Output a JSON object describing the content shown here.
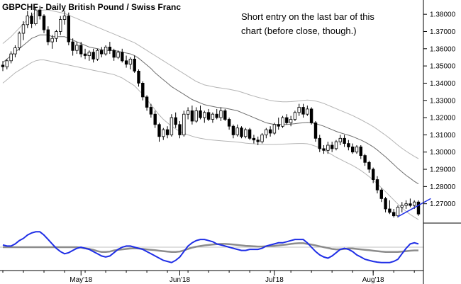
{
  "chart_data": {
    "type": "candlestick",
    "title": "GBPCHF - Daily  British Pound / Swiss Franc",
    "annotation_lines": [
      "Short entry on the last bar of this",
      "chart (before close, though.)"
    ],
    "y_range": [
      1.26,
      1.385
    ],
    "y_ticks": [
      "1.38000",
      "1.37000",
      "1.36000",
      "1.35000",
      "1.34000",
      "1.33000",
      "1.32000",
      "1.31000",
      "1.30000",
      "1.29000",
      "1.28000",
      "1.27000"
    ],
    "x_labels": [
      {
        "label": "May'18",
        "bar": 19
      },
      {
        "label": "Jun'18",
        "bar": 43
      },
      {
        "label": "Jul'18",
        "bar": 66
      },
      {
        "label": "Aug'18",
        "bar": 90
      }
    ],
    "ohlc": [
      [
        1.3505,
        1.3528,
        1.347,
        1.3495
      ],
      [
        1.3495,
        1.354,
        1.348,
        1.353
      ],
      [
        1.353,
        1.3585,
        1.3515,
        1.357
      ],
      [
        1.357,
        1.362,
        1.355,
        1.3605
      ],
      [
        1.3605,
        1.37,
        1.359,
        1.369
      ],
      [
        1.369,
        1.376,
        1.365,
        1.374
      ],
      [
        1.374,
        1.382,
        1.372,
        1.379
      ],
      [
        1.379,
        1.381,
        1.372,
        1.3745
      ],
      [
        1.3745,
        1.384,
        1.3735,
        1.3825
      ],
      [
        1.3825,
        1.385,
        1.377,
        1.379
      ],
      [
        1.379,
        1.38,
        1.369,
        1.371
      ],
      [
        1.371,
        1.373,
        1.362,
        1.364
      ],
      [
        1.364,
        1.368,
        1.36,
        1.366
      ],
      [
        1.366,
        1.371,
        1.364,
        1.37
      ],
      [
        1.37,
        1.379,
        1.368,
        1.377
      ],
      [
        1.377,
        1.382,
        1.374,
        1.379
      ],
      [
        1.379,
        1.381,
        1.362,
        1.364
      ],
      [
        1.364,
        1.366,
        1.356,
        1.359
      ],
      [
        1.359,
        1.364,
        1.357,
        1.362
      ],
      [
        1.362,
        1.364,
        1.355,
        1.357
      ],
      [
        1.357,
        1.36,
        1.354,
        1.356
      ],
      [
        1.356,
        1.359,
        1.353,
        1.358
      ],
      [
        1.358,
        1.36,
        1.352,
        1.354
      ],
      [
        1.354,
        1.36,
        1.353,
        1.359
      ],
      [
        1.359,
        1.361,
        1.355,
        1.357
      ],
      [
        1.357,
        1.362,
        1.356,
        1.361
      ],
      [
        1.361,
        1.364,
        1.357,
        1.359
      ],
      [
        1.359,
        1.36,
        1.353,
        1.355
      ],
      [
        1.355,
        1.359,
        1.354,
        1.358
      ],
      [
        1.358,
        1.36,
        1.352,
        1.353
      ],
      [
        1.353,
        1.356,
        1.349,
        1.351
      ],
      [
        1.351,
        1.355,
        1.348,
        1.354
      ],
      [
        1.354,
        1.356,
        1.346,
        1.347
      ],
      [
        1.347,
        1.348,
        1.338,
        1.34
      ],
      [
        1.34,
        1.341,
        1.33,
        1.332
      ],
      [
        1.332,
        1.333,
        1.324,
        1.326
      ],
      [
        1.326,
        1.328,
        1.32,
        1.322
      ],
      [
        1.322,
        1.324,
        1.314,
        1.316
      ],
      [
        1.316,
        1.317,
        1.306,
        1.309
      ],
      [
        1.309,
        1.314,
        1.307,
        1.313
      ],
      [
        1.313,
        1.315,
        1.308,
        1.31
      ],
      [
        1.31,
        1.322,
        1.309,
        1.32
      ],
      [
        1.32,
        1.323,
        1.314,
        1.316
      ],
      [
        1.316,
        1.318,
        1.308,
        1.31
      ],
      [
        1.31,
        1.324,
        1.309,
        1.322
      ],
      [
        1.322,
        1.326,
        1.319,
        1.324
      ],
      [
        1.324,
        1.327,
        1.316,
        1.318
      ],
      [
        1.318,
        1.326,
        1.317,
        1.324
      ],
      [
        1.324,
        1.327,
        1.319,
        1.32
      ],
      [
        1.32,
        1.324,
        1.317,
        1.323
      ],
      [
        1.323,
        1.325,
        1.318,
        1.319
      ],
      [
        1.319,
        1.323,
        1.317,
        1.322
      ],
      [
        1.322,
        1.325,
        1.319,
        1.32
      ],
      [
        1.32,
        1.326,
        1.318,
        1.324
      ],
      [
        1.324,
        1.325,
        1.318,
        1.319
      ],
      [
        1.319,
        1.32,
        1.313,
        1.315
      ],
      [
        1.315,
        1.316,
        1.308,
        1.31
      ],
      [
        1.31,
        1.316,
        1.309,
        1.314
      ],
      [
        1.314,
        1.315,
        1.308,
        1.309
      ],
      [
        1.309,
        1.314,
        1.308,
        1.313
      ],
      [
        1.313,
        1.314,
        1.307,
        1.308
      ],
      [
        1.308,
        1.31,
        1.305,
        1.307
      ],
      [
        1.307,
        1.309,
        1.304,
        1.306
      ],
      [
        1.306,
        1.311,
        1.305,
        1.31
      ],
      [
        1.31,
        1.314,
        1.308,
        1.313
      ],
      [
        1.313,
        1.315,
        1.309,
        1.311
      ],
      [
        1.311,
        1.317,
        1.31,
        1.316
      ],
      [
        1.316,
        1.32,
        1.313,
        1.315
      ],
      [
        1.315,
        1.321,
        1.314,
        1.32
      ],
      [
        1.32,
        1.322,
        1.316,
        1.317
      ],
      [
        1.317,
        1.321,
        1.315,
        1.319
      ],
      [
        1.319,
        1.324,
        1.318,
        1.323
      ],
      [
        1.323,
        1.328,
        1.321,
        1.326
      ],
      [
        1.326,
        1.328,
        1.32,
        1.322
      ],
      [
        1.322,
        1.327,
        1.321,
        1.325
      ],
      [
        1.325,
        1.326,
        1.316,
        1.317
      ],
      [
        1.317,
        1.318,
        1.306,
        1.308
      ],
      [
        1.308,
        1.31,
        1.3,
        1.302
      ],
      [
        1.302,
        1.304,
        1.299,
        1.301
      ],
      [
        1.301,
        1.306,
        1.299,
        1.304
      ],
      [
        1.304,
        1.306,
        1.3,
        1.302
      ],
      [
        1.302,
        1.307,
        1.301,
        1.306
      ],
      [
        1.306,
        1.31,
        1.304,
        1.308
      ],
      [
        1.308,
        1.31,
        1.303,
        1.305
      ],
      [
        1.305,
        1.307,
        1.301,
        1.303
      ],
      [
        1.303,
        1.305,
        1.299,
        1.3
      ],
      [
        1.3,
        1.304,
        1.299,
        1.303
      ],
      [
        1.303,
        1.304,
        1.296,
        1.298
      ],
      [
        1.298,
        1.299,
        1.292,
        1.294
      ],
      [
        1.294,
        1.295,
        1.288,
        1.29
      ],
      [
        1.29,
        1.291,
        1.282,
        1.284
      ],
      [
        1.284,
        1.286,
        1.276,
        1.278
      ],
      [
        1.278,
        1.279,
        1.271,
        1.273
      ],
      [
        1.273,
        1.274,
        1.265,
        1.267
      ],
      [
        1.267,
        1.272,
        1.264,
        1.265
      ],
      [
        1.265,
        1.267,
        1.262,
        1.263
      ],
      [
        1.263,
        1.269,
        1.262,
        1.268
      ],
      [
        1.268,
        1.271,
        1.265,
        1.269
      ],
      [
        1.269,
        1.272,
        1.267,
        1.27
      ],
      [
        1.27,
        1.273,
        1.268,
        1.269
      ],
      [
        1.269,
        1.272,
        1.267,
        1.271
      ],
      [
        1.271,
        1.272,
        1.263,
        1.264
      ]
    ],
    "ma_mid": [
      1.352,
      1.354,
      1.356,
      1.358,
      1.36,
      1.362,
      1.364,
      1.366,
      1.367,
      1.368,
      1.368,
      1.368,
      1.367,
      1.367,
      1.367,
      1.367,
      1.366,
      1.365,
      1.364,
      1.363,
      1.362,
      1.361,
      1.3605,
      1.36,
      1.3595,
      1.359,
      1.359,
      1.359,
      1.3585,
      1.358,
      1.3575,
      1.357,
      1.356,
      1.3545,
      1.3525,
      1.3505,
      1.3485,
      1.346,
      1.344,
      1.342,
      1.34,
      1.338,
      1.3365,
      1.335,
      1.3335,
      1.332,
      1.3305,
      1.3295,
      1.3285,
      1.3275,
      1.327,
      1.3265,
      1.326,
      1.3258,
      1.3255,
      1.325,
      1.3245,
      1.324,
      1.323,
      1.322,
      1.321,
      1.32,
      1.319,
      1.318,
      1.317,
      1.3165,
      1.316,
      1.316,
      1.316,
      1.316,
      1.3162,
      1.3165,
      1.3168,
      1.317,
      1.3172,
      1.317,
      1.3165,
      1.3158,
      1.315,
      1.314,
      1.313,
      1.312,
      1.3112,
      1.3105,
      1.3098,
      1.309,
      1.308,
      1.307,
      1.3058,
      1.3045,
      1.303,
      1.3012,
      1.2992,
      1.2972,
      1.295,
      1.2928,
      1.2905,
      1.2885,
      1.2865,
      1.2848,
      1.283,
      1.2815
    ],
    "band_upper": [
      1.363,
      1.365,
      1.367,
      1.3695,
      1.372,
      1.3745,
      1.377,
      1.3795,
      1.381,
      1.382,
      1.3825,
      1.3825,
      1.382,
      1.3815,
      1.381,
      1.3805,
      1.3795,
      1.3785,
      1.3775,
      1.3765,
      1.3755,
      1.3745,
      1.3735,
      1.3725,
      1.3715,
      1.3705,
      1.3695,
      1.3685,
      1.3675,
      1.3665,
      1.3655,
      1.3645,
      1.3635,
      1.362,
      1.3605,
      1.359,
      1.3575,
      1.356,
      1.3545,
      1.353,
      1.3515,
      1.35,
      1.3485,
      1.347,
      1.3455,
      1.344,
      1.3425,
      1.341,
      1.34,
      1.339,
      1.3385,
      1.338,
      1.3375,
      1.3372,
      1.3368,
      1.3365,
      1.336,
      1.3355,
      1.3348,
      1.334,
      1.3332,
      1.3325,
      1.3318,
      1.3312,
      1.3306,
      1.33,
      1.3296,
      1.3294,
      1.3292,
      1.3292,
      1.3293,
      1.3295,
      1.3297,
      1.33,
      1.3302,
      1.33,
      1.3296,
      1.329,
      1.3282,
      1.3272,
      1.3262,
      1.3252,
      1.3242,
      1.3232,
      1.3222,
      1.3212,
      1.32,
      1.3188,
      1.3175,
      1.3162,
      1.3148,
      1.3132,
      1.3115,
      1.3098,
      1.308,
      1.306,
      1.304,
      1.3022,
      1.3005,
      1.299,
      1.2975,
      1.2962
    ],
    "band_lower": [
      1.34,
      1.342,
      1.344,
      1.346,
      1.3475,
      1.349,
      1.3505,
      1.352,
      1.353,
      1.3535,
      1.3535,
      1.353,
      1.3525,
      1.352,
      1.3515,
      1.351,
      1.3505,
      1.35,
      1.3495,
      1.349,
      1.3485,
      1.348,
      1.3475,
      1.347,
      1.3465,
      1.346,
      1.3455,
      1.345,
      1.344,
      1.343,
      1.3415,
      1.34,
      1.3385,
      1.336,
      1.3335,
      1.3305,
      1.3275,
      1.3245,
      1.3215,
      1.319,
      1.317,
      1.315,
      1.3135,
      1.312,
      1.311,
      1.31,
      1.3092,
      1.3085,
      1.308,
      1.3076,
      1.3072,
      1.307,
      1.3068,
      1.3066,
      1.3064,
      1.3062,
      1.306,
      1.3058,
      1.3055,
      1.3052,
      1.305,
      1.3048,
      1.3046,
      1.3045,
      1.3044,
      1.3044,
      1.3044,
      1.3045,
      1.3046,
      1.3047,
      1.3048,
      1.3049,
      1.305,
      1.305,
      1.3048,
      1.3042,
      1.3034,
      1.3024,
      1.3012,
      1.2998,
      1.2984,
      1.297,
      1.2958,
      1.2946,
      1.2934,
      1.2922,
      1.2908,
      1.2893,
      1.2876,
      1.2858,
      1.2838,
      1.2816,
      1.2793,
      1.277,
      1.2746,
      1.2722,
      1.2698,
      1.2676,
      1.2656,
      1.2638,
      1.2622,
      1.2608
    ],
    "trendline": {
      "from": [
        96,
        1.2625
      ],
      "to": [
        104,
        1.273
      ]
    },
    "oscillator": {
      "range": [
        -1,
        1
      ],
      "fast": [
        0.1,
        0.05,
        0.05,
        0.15,
        0.3,
        0.4,
        0.55,
        0.65,
        0.7,
        0.7,
        0.55,
        0.35,
        0.15,
        -0.05,
        -0.2,
        -0.3,
        -0.25,
        -0.15,
        -0.05,
        0.0,
        -0.05,
        -0.1,
        -0.2,
        -0.3,
        -0.4,
        -0.45,
        -0.4,
        -0.25,
        -0.1,
        0.0,
        0.05,
        0.05,
        0.0,
        -0.05,
        -0.1,
        -0.2,
        -0.3,
        -0.4,
        -0.5,
        -0.6,
        -0.65,
        -0.7,
        -0.6,
        -0.45,
        -0.2,
        0.05,
        0.2,
        0.3,
        0.35,
        0.35,
        0.3,
        0.25,
        0.15,
        0.1,
        0.05,
        0.0,
        -0.05,
        -0.1,
        -0.15,
        -0.15,
        -0.1,
        -0.1,
        -0.1,
        -0.05,
        0.05,
        0.1,
        0.15,
        0.2,
        0.2,
        0.25,
        0.3,
        0.35,
        0.35,
        0.35,
        0.2,
        0.0,
        -0.2,
        -0.35,
        -0.45,
        -0.5,
        -0.4,
        -0.25,
        -0.1,
        -0.05,
        -0.1,
        -0.2,
        -0.35,
        -0.45,
        -0.55,
        -0.6,
        -0.65,
        -0.68,
        -0.7,
        -0.7,
        -0.7,
        -0.65,
        -0.55,
        -0.3,
        -0.05,
        0.15,
        0.2,
        0.15
      ],
      "slow": [
        0.0,
        0.0,
        0.0,
        0.0,
        0.0,
        0.0,
        0.0,
        0.0,
        0.0,
        0.0,
        0.0,
        0.0,
        0.0,
        0.0,
        0.0,
        0.0,
        0.0,
        0.0,
        0.0,
        -0.02,
        -0.05,
        -0.08,
        -0.12,
        -0.18,
        -0.22,
        -0.22,
        -0.2,
        -0.15,
        -0.12,
        -0.1,
        -0.08,
        -0.06,
        -0.05,
        -0.06,
        -0.08,
        -0.1,
        -0.12,
        -0.14,
        -0.16,
        -0.18,
        -0.2,
        -0.22,
        -0.22,
        -0.2,
        -0.15,
        -0.08,
        -0.02,
        0.02,
        0.05,
        0.08,
        0.1,
        0.12,
        0.14,
        0.15,
        0.15,
        0.14,
        0.12,
        0.1,
        0.08,
        0.06,
        0.05,
        0.04,
        0.03,
        0.03,
        0.04,
        0.05,
        0.06,
        0.08,
        0.1,
        0.12,
        0.15,
        0.17,
        0.18,
        0.18,
        0.15,
        0.12,
        0.08,
        0.04,
        0.0,
        -0.04,
        -0.08,
        -0.1,
        -0.1,
        -0.08,
        -0.06,
        -0.06,
        -0.08,
        -0.1,
        -0.12,
        -0.14,
        -0.16,
        -0.18,
        -0.2,
        -0.22,
        -0.22,
        -0.22,
        -0.22,
        -0.2,
        -0.18,
        -0.16,
        -0.15,
        -0.15
      ],
      "ref_line": 0.0
    },
    "colors": {
      "up_body": "#ffffff",
      "down_body": "#000000",
      "wick": "#000000",
      "ma_mid": "#6e6e6e",
      "bands": "#b4b4b4",
      "trendline": "#1f2ee6",
      "osc_fast": "#1f2ee6",
      "osc_slow": "#8c8c8c",
      "osc_ref": "#c0c0c0"
    }
  }
}
